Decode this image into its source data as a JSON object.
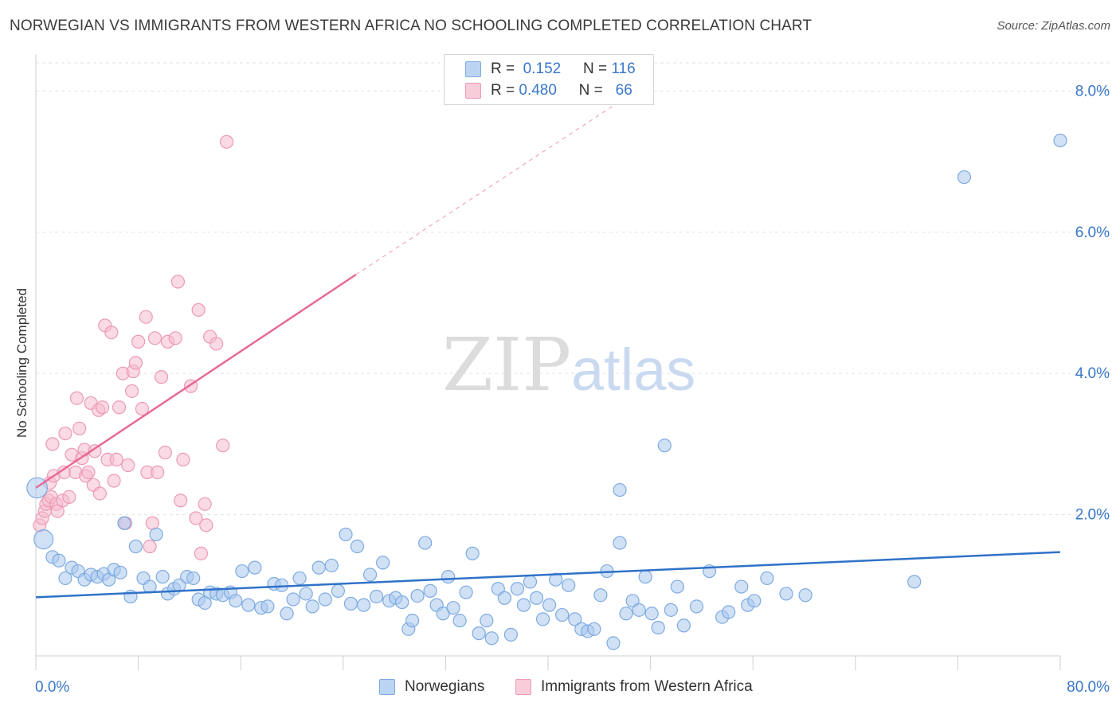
{
  "title": "NORWEGIAN VS IMMIGRANTS FROM WESTERN AFRICA NO SCHOOLING COMPLETED CORRELATION CHART",
  "source": "Source: ZipAtlas.com",
  "legend": {
    "r1_label": "R =",
    "r1_value": "0.152",
    "n1_label": "N =",
    "n1_value": "116",
    "r2_label": "R =",
    "r2_value": "0.480",
    "n2_label": "N =",
    "n2_value": "66"
  },
  "watermark": {
    "zip": "ZIP",
    "atlas": "atlas"
  },
  "colors": {
    "blue_fill": "#a9c8ef",
    "blue_stroke": "#7eaae0",
    "blue_line": "#2f72c8",
    "pink_fill": "#f6bccd",
    "pink_stroke": "#ec9ab3",
    "pink_line": "#e86a94",
    "axis_tick_text": "#3a78c9",
    "grid": "#e2e2e2"
  },
  "chart_data": {
    "type": "scatter",
    "title": "NORWEGIAN VS IMMIGRANTS FROM WESTERN AFRICA NO SCHOOLING COMPLETED CORRELATION CHART",
    "xlabel": "",
    "ylabel": "No Schooling Completed",
    "xlim": [
      0,
      80
    ],
    "ylim": [
      0,
      8.5
    ],
    "x_tick_labels": [
      "0.0%",
      "80.0%"
    ],
    "y_ticks": [
      2,
      4,
      6,
      8
    ],
    "y_tick_labels": [
      "2.0%",
      "4.0%",
      "6.0%",
      "8.0%"
    ],
    "grid": true,
    "legend_position": "top-center",
    "series": [
      {
        "name": "Norwegians",
        "color": "#a9c8ef",
        "R": 0.152,
        "N": 116,
        "trend": {
          "x": [
            0,
            80
          ],
          "y": [
            0.83,
            1.47
          ]
        },
        "points": [
          [
            0.1,
            2.38,
            1.6
          ],
          [
            0.6,
            1.65,
            1.5
          ],
          [
            1.3,
            1.4,
            1
          ],
          [
            1.8,
            1.35,
            1
          ],
          [
            2.3,
            1.1,
            1
          ],
          [
            2.8,
            1.25,
            1
          ],
          [
            3.3,
            1.2,
            1
          ],
          [
            3.8,
            1.08,
            1
          ],
          [
            4.3,
            1.15,
            1
          ],
          [
            4.8,
            1.12,
            1
          ],
          [
            5.3,
            1.16,
            1
          ],
          [
            5.7,
            1.08,
            1
          ],
          [
            6.1,
            1.22,
            1
          ],
          [
            6.6,
            1.18,
            1
          ],
          [
            6.9,
            1.88,
            1
          ],
          [
            7.4,
            0.84,
            1
          ],
          [
            7.8,
            1.55,
            1
          ],
          [
            8.4,
            1.1,
            1
          ],
          [
            8.9,
            0.98,
            1
          ],
          [
            9.4,
            1.72,
            1
          ],
          [
            9.9,
            1.12,
            1
          ],
          [
            10.3,
            0.88,
            1
          ],
          [
            10.8,
            0.95,
            1
          ],
          [
            11.2,
            1.0,
            1
          ],
          [
            11.8,
            1.12,
            1
          ],
          [
            12.3,
            1.1,
            1
          ],
          [
            12.7,
            0.8,
            1
          ],
          [
            13.2,
            0.75,
            1
          ],
          [
            13.6,
            0.9,
            1
          ],
          [
            14.1,
            0.88,
            1
          ],
          [
            14.6,
            0.86,
            1
          ],
          [
            15.2,
            0.9,
            1
          ],
          [
            15.6,
            0.78,
            1
          ],
          [
            16.1,
            1.2,
            1
          ],
          [
            16.6,
            0.72,
            1
          ],
          [
            17.1,
            1.25,
            1
          ],
          [
            17.6,
            0.68,
            1
          ],
          [
            18.1,
            0.7,
            1
          ],
          [
            18.6,
            1.02,
            1
          ],
          [
            19.2,
            1.0,
            1
          ],
          [
            19.6,
            0.6,
            1
          ],
          [
            20.1,
            0.8,
            1
          ],
          [
            20.6,
            1.1,
            1
          ],
          [
            21.1,
            0.88,
            1
          ],
          [
            21.6,
            0.7,
            1
          ],
          [
            22.1,
            1.25,
            1
          ],
          [
            22.6,
            0.8,
            1
          ],
          [
            23.1,
            1.28,
            1
          ],
          [
            23.6,
            0.92,
            1
          ],
          [
            24.2,
            1.72,
            1
          ],
          [
            24.6,
            0.74,
            1
          ],
          [
            25.1,
            1.55,
            1
          ],
          [
            25.6,
            0.72,
            1
          ],
          [
            26.1,
            1.15,
            1
          ],
          [
            26.6,
            0.84,
            1
          ],
          [
            27.1,
            1.32,
            1
          ],
          [
            27.6,
            0.78,
            1
          ],
          [
            28.1,
            0.82,
            1
          ],
          [
            28.6,
            0.76,
            1
          ],
          [
            29.1,
            0.38,
            1
          ],
          [
            29.4,
            0.5,
            1
          ],
          [
            29.8,
            0.85,
            1
          ],
          [
            30.4,
            1.6,
            1
          ],
          [
            30.8,
            0.92,
            1
          ],
          [
            31.3,
            0.72,
            1
          ],
          [
            31.8,
            0.6,
            1
          ],
          [
            32.2,
            1.12,
            1
          ],
          [
            32.6,
            0.68,
            1
          ],
          [
            33.1,
            0.5,
            1
          ],
          [
            33.6,
            0.9,
            1
          ],
          [
            34.1,
            1.45,
            1
          ],
          [
            34.6,
            0.32,
            1
          ],
          [
            35.2,
            0.5,
            1
          ],
          [
            35.6,
            0.25,
            1
          ],
          [
            36.1,
            0.95,
            1
          ],
          [
            36.6,
            0.82,
            1
          ],
          [
            37.1,
            0.3,
            1
          ],
          [
            37.6,
            0.95,
            1
          ],
          [
            38.1,
            0.72,
            1
          ],
          [
            38.6,
            1.05,
            1
          ],
          [
            39.1,
            0.82,
            1
          ],
          [
            39.6,
            0.52,
            1
          ],
          [
            40.1,
            0.72,
            1
          ],
          [
            40.6,
            1.08,
            1
          ],
          [
            41.1,
            0.58,
            1
          ],
          [
            41.6,
            1.0,
            1
          ],
          [
            42.1,
            0.52,
            1
          ],
          [
            42.6,
            0.38,
            1
          ],
          [
            43.1,
            0.35,
            1
          ],
          [
            43.6,
            0.38,
            1
          ],
          [
            44.1,
            0.86,
            1
          ],
          [
            44.6,
            1.2,
            1
          ],
          [
            45.1,
            0.18,
            1
          ],
          [
            45.6,
            2.35,
            1
          ],
          [
            46.1,
            0.6,
            1
          ],
          [
            46.6,
            0.78,
            1
          ],
          [
            47.1,
            0.65,
            1
          ],
          [
            47.6,
            1.12,
            1
          ],
          [
            48.1,
            0.6,
            1
          ],
          [
            48.6,
            0.4,
            1
          ],
          [
            49.1,
            2.98,
            1
          ],
          [
            49.6,
            0.65,
            1
          ],
          [
            50.1,
            0.98,
            1
          ],
          [
            50.6,
            0.43,
            1
          ],
          [
            51.6,
            0.7,
            1
          ],
          [
            52.6,
            1.2,
            1
          ],
          [
            53.6,
            0.55,
            1
          ],
          [
            54.1,
            0.62,
            1
          ],
          [
            55.1,
            0.98,
            1
          ],
          [
            55.6,
            0.72,
            1
          ],
          [
            56.1,
            0.78,
            1
          ],
          [
            57.1,
            1.1,
            1
          ],
          [
            58.6,
            0.88,
            1
          ],
          [
            60.1,
            0.86,
            1
          ],
          [
            45.6,
            1.6,
            1
          ],
          [
            72.5,
            6.78,
            1
          ],
          [
            80.0,
            7.3,
            1
          ],
          [
            68.6,
            1.05,
            1
          ]
        ]
      },
      {
        "name": "Immigrants from Western Africa",
        "color": "#f6bccd",
        "R": 0.48,
        "N": 66,
        "trend": {
          "x": [
            0,
            25
          ],
          "y": [
            2.38,
            5.4
          ]
        },
        "trend_dashed": {
          "x": [
            25,
            45
          ],
          "y": [
            5.4,
            7.78
          ]
        },
        "points": [
          [
            0.3,
            1.85,
            1
          ],
          [
            0.5,
            1.95,
            1
          ],
          [
            0.7,
            2.05,
            1
          ],
          [
            0.8,
            2.15,
            1
          ],
          [
            1.0,
            2.2,
            1
          ],
          [
            1.1,
            2.45,
            1
          ],
          [
            1.2,
            2.25,
            1
          ],
          [
            1.3,
            3.0,
            1
          ],
          [
            1.4,
            2.55,
            1
          ],
          [
            1.6,
            2.15,
            1
          ],
          [
            1.7,
            2.05,
            1
          ],
          [
            2.1,
            2.2,
            1
          ],
          [
            2.2,
            2.6,
            1
          ],
          [
            2.3,
            3.15,
            1
          ],
          [
            2.6,
            2.25,
            1
          ],
          [
            2.8,
            2.85,
            1
          ],
          [
            3.1,
            2.6,
            1
          ],
          [
            3.2,
            3.65,
            1
          ],
          [
            3.4,
            3.22,
            1
          ],
          [
            3.6,
            2.8,
            1
          ],
          [
            3.8,
            2.92,
            1
          ],
          [
            3.9,
            2.55,
            1
          ],
          [
            4.1,
            2.6,
            1
          ],
          [
            4.3,
            3.58,
            1
          ],
          [
            4.5,
            2.42,
            1
          ],
          [
            4.6,
            2.9,
            1
          ],
          [
            4.9,
            3.48,
            1
          ],
          [
            5.0,
            2.3,
            1
          ],
          [
            5.2,
            3.52,
            1
          ],
          [
            5.4,
            4.68,
            1
          ],
          [
            5.6,
            2.78,
            1
          ],
          [
            5.9,
            4.58,
            1
          ],
          [
            6.1,
            2.48,
            1
          ],
          [
            6.3,
            2.78,
            1
          ],
          [
            6.5,
            3.52,
            1
          ],
          [
            6.8,
            4.0,
            1
          ],
          [
            7.0,
            1.88,
            1
          ],
          [
            7.2,
            2.7,
            1
          ],
          [
            7.5,
            3.75,
            1
          ],
          [
            7.6,
            4.03,
            1
          ],
          [
            7.8,
            4.15,
            1
          ],
          [
            8.0,
            4.45,
            1
          ],
          [
            8.3,
            3.5,
            1
          ],
          [
            8.6,
            4.8,
            1
          ],
          [
            8.7,
            2.6,
            1
          ],
          [
            8.9,
            1.55,
            1
          ],
          [
            9.1,
            1.88,
            1
          ],
          [
            9.3,
            4.5,
            1
          ],
          [
            9.5,
            2.6,
            1
          ],
          [
            9.8,
            3.95,
            1
          ],
          [
            10.1,
            2.88,
            1
          ],
          [
            10.3,
            4.45,
            1
          ],
          [
            10.9,
            4.5,
            1
          ],
          [
            11.1,
            5.3,
            1
          ],
          [
            11.3,
            2.2,
            1
          ],
          [
            11.5,
            2.78,
            1
          ],
          [
            12.1,
            3.82,
            1
          ],
          [
            12.5,
            1.95,
            1
          ],
          [
            12.7,
            4.9,
            1
          ],
          [
            12.9,
            1.45,
            1
          ],
          [
            13.2,
            2.15,
            1
          ],
          [
            13.3,
            1.85,
            1
          ],
          [
            13.6,
            4.52,
            1
          ],
          [
            14.1,
            4.42,
            1
          ],
          [
            14.6,
            2.98,
            1
          ],
          [
            14.9,
            7.28,
            1
          ]
        ]
      }
    ]
  }
}
